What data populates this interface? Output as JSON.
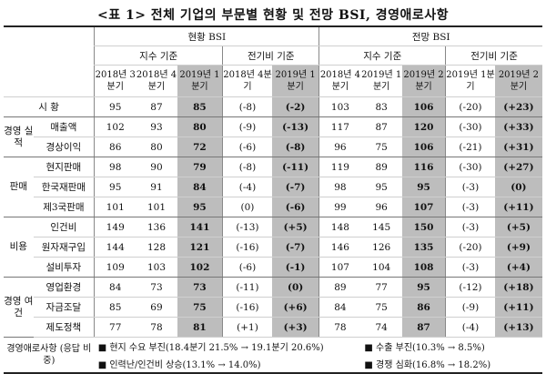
{
  "title": "<표 1> 전체 기업의 부문별 현황 및 전망 BSI, 경영애로사항",
  "headers": {
    "group_current": "현황 BSI",
    "group_outlook": "전망 BSI",
    "index_basis": "지수 기준",
    "prev_basis": "전기비 기준",
    "cur_cols": [
      "2018년 3분기",
      "2018년 4분기",
      "2019년 1분기"
    ],
    "cur_prev_cols": [
      "2018년 4분기",
      "2019년 1분기"
    ],
    "out_cols": [
      "2018년 4분기",
      "2019년 1분기",
      "2019년 2분기"
    ],
    "out_prev_cols": [
      "2019년 1분기",
      "2019년 2분기"
    ]
  },
  "categories": {
    "mgmt": "경영 실적",
    "sales": "판매",
    "cost": "비용",
    "env": "경영 여건"
  },
  "rows": [
    {
      "label": "시 황",
      "cur": [
        "95",
        "87",
        "85"
      ],
      "cur_prev": [
        "(-8)",
        "(-2)"
      ],
      "out": [
        "103",
        "83",
        "106"
      ],
      "out_prev": [
        "(-20)",
        "(+23)"
      ]
    },
    {
      "label": "매출액",
      "cur": [
        "102",
        "93",
        "80"
      ],
      "cur_prev": [
        "(-9)",
        "(-13)"
      ],
      "out": [
        "117",
        "87",
        "120"
      ],
      "out_prev": [
        "(-30)",
        "(+33)"
      ]
    },
    {
      "label": "경상이익",
      "cur": [
        "86",
        "80",
        "72"
      ],
      "cur_prev": [
        "(-6)",
        "(-8)"
      ],
      "out": [
        "96",
        "75",
        "106"
      ],
      "out_prev": [
        "(-21)",
        "(+31)"
      ]
    },
    {
      "label": "현지판매",
      "cur": [
        "98",
        "90",
        "79"
      ],
      "cur_prev": [
        "(-8)",
        "(-11)"
      ],
      "out": [
        "119",
        "89",
        "116"
      ],
      "out_prev": [
        "(-30)",
        "(+27)"
      ]
    },
    {
      "label": "한국재판매",
      "cur": [
        "95",
        "91",
        "84"
      ],
      "cur_prev": [
        "(-4)",
        "(-7)"
      ],
      "out": [
        "98",
        "95",
        "95"
      ],
      "out_prev": [
        "(-3)",
        "(0)"
      ]
    },
    {
      "label": "제3국판매",
      "cur": [
        "101",
        "101",
        "95"
      ],
      "cur_prev": [
        "(0)",
        "(-6)"
      ],
      "out": [
        "99",
        "96",
        "107"
      ],
      "out_prev": [
        "(-3)",
        "(+11)"
      ]
    },
    {
      "label": "인건비",
      "cur": [
        "149",
        "136",
        "141"
      ],
      "cur_prev": [
        "(-13)",
        "(+5)"
      ],
      "out": [
        "148",
        "145",
        "150"
      ],
      "out_prev": [
        "(-3)",
        "(+5)"
      ]
    },
    {
      "label": "원자재구입",
      "cur": [
        "144",
        "128",
        "121"
      ],
      "cur_prev": [
        "(-16)",
        "(-7)"
      ],
      "out": [
        "146",
        "126",
        "135"
      ],
      "out_prev": [
        "(-20)",
        "(+9)"
      ]
    },
    {
      "label": "설비투자",
      "cur": [
        "109",
        "103",
        "102"
      ],
      "cur_prev": [
        "(-6)",
        "(-1)"
      ],
      "out": [
        "107",
        "104",
        "108"
      ],
      "out_prev": [
        "(-3)",
        "(+4)"
      ]
    },
    {
      "label": "영업환경",
      "cur": [
        "84",
        "73",
        "73"
      ],
      "cur_prev": [
        "(-11)",
        "(0)"
      ],
      "out": [
        "89",
        "77",
        "95"
      ],
      "out_prev": [
        "(-12)",
        "(+18)"
      ]
    },
    {
      "label": "자금조달",
      "cur": [
        "85",
        "69",
        "75"
      ],
      "cur_prev": [
        "(-16)",
        "(+6)"
      ],
      "out": [
        "84",
        "75",
        "86"
      ],
      "out_prev": [
        "(-9)",
        "(+11)"
      ]
    },
    {
      "label": "제도정책",
      "cur": [
        "77",
        "78",
        "81"
      ],
      "cur_prev": [
        "(+1)",
        "(+3)"
      ],
      "out": [
        "78",
        "74",
        "87"
      ],
      "out_prev": [
        "(-4)",
        "(+13)"
      ]
    }
  ],
  "footer": {
    "label": "경영애로사항 (응답 비중)",
    "line1_a": "■ 현지 수요 부진(18.4분기 21.5% → 19.1분기 20.6%)",
    "line1_b": "■ 수출 부진(10.3% → 8.5%)",
    "line2_a": "■ 인력난/인건비 상승(13.1% → 14.0%)",
    "line2_b": "■ 경쟁 심화(16.8% → 18.2%)"
  }
}
